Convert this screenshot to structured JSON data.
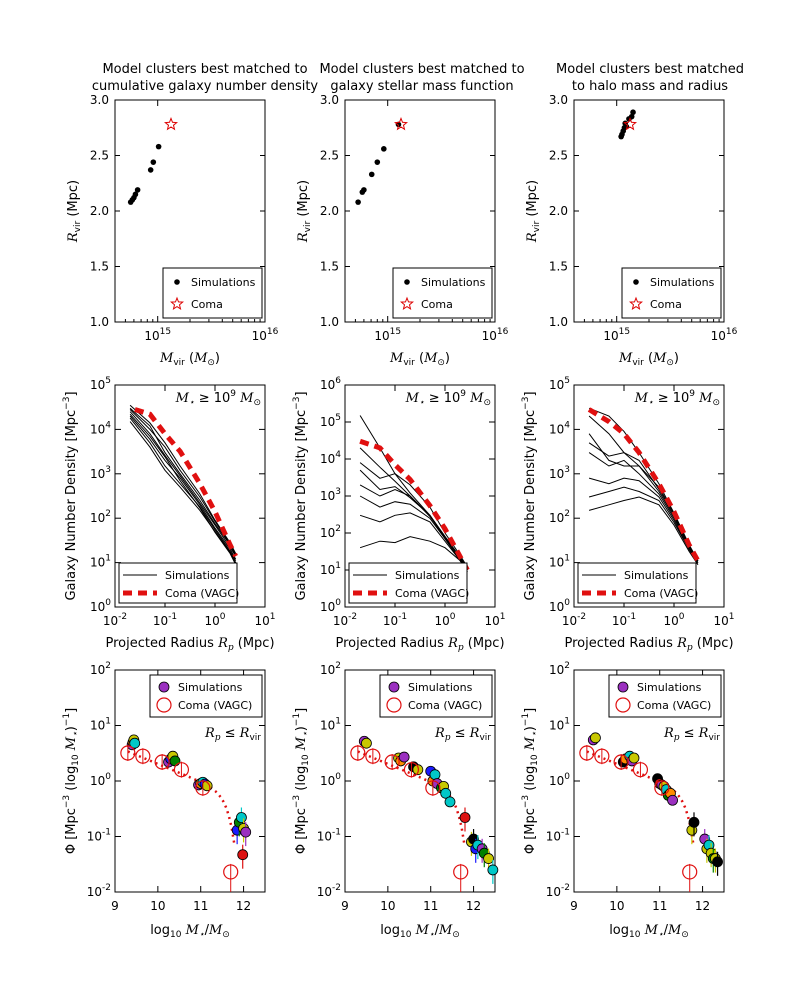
{
  "columns": [
    {
      "title_lines": [
        "Model clusters best matched to",
        "cumulative galaxy number density"
      ]
    },
    {
      "title_lines": [
        "Model clusters best matched to",
        "galaxy stellar mass function"
      ]
    },
    {
      "title_lines": [
        "Model clusters best matched",
        "to halo mass and radius"
      ]
    }
  ],
  "chart_data": [
    {
      "type": "scatter",
      "panel": "rvir-vs-mvir-col1",
      "xlabel": "M_vir (M_⊙)",
      "ylabel": "R_vir (Mpc)",
      "xscale": "log",
      "xlim": [
        400000000000000.0,
        1e+16
      ],
      "ylim": [
        1.0,
        3.0
      ],
      "xticks": [
        "10^15",
        "10^16"
      ],
      "yticks": [
        "1.0",
        "1.5",
        "2.0",
        "2.5",
        "3.0"
      ],
      "legend": [
        "Simulations",
        "Coma"
      ],
      "legend_loc": "lower right",
      "series": [
        {
          "name": "Simulations",
          "x": [
            560000000000000.0,
            580000000000000.0,
            600000000000000.0,
            620000000000000.0,
            650000000000000.0,
            860000000000000.0,
            910000000000000.0,
            1020000000000000.0
          ],
          "y": [
            2.08,
            2.1,
            2.12,
            2.15,
            2.19,
            2.37,
            2.44,
            2.58
          ]
        },
        {
          "name": "Coma",
          "x": [
            1330000000000000.0
          ],
          "y": [
            2.78
          ]
        }
      ]
    },
    {
      "type": "scatter",
      "panel": "rvir-vs-mvir-col2",
      "xlabel": "M_vir (M_⊙)",
      "ylabel": "R_vir (Mpc)",
      "xscale": "log",
      "xlim": [
        400000000000000.0,
        1e+16
      ],
      "ylim": [
        1.0,
        3.0
      ],
      "xticks": [
        "10^15",
        "10^16"
      ],
      "yticks": [
        "1.0",
        "1.5",
        "2.0",
        "2.5",
        "3.0"
      ],
      "legend": [
        "Simulations",
        "Coma"
      ],
      "legend_loc": "lower right",
      "series": [
        {
          "name": "Simulations",
          "x": [
            530000000000000.0,
            580000000000000.0,
            600000000000000.0,
            710000000000000.0,
            800000000000000.0,
            920000000000000.0,
            1260000000000000.0
          ],
          "y": [
            2.08,
            2.17,
            2.19,
            2.33,
            2.44,
            2.56,
            2.78
          ]
        },
        {
          "name": "Coma",
          "x": [
            1330000000000000.0
          ],
          "y": [
            2.78
          ]
        }
      ]
    },
    {
      "type": "scatter",
      "panel": "rvir-vs-mvir-col3",
      "xlabel": "M_vir (M_⊙)",
      "ylabel": "R_vir (Mpc)",
      "xscale": "log",
      "xlim": [
        400000000000000.0,
        1e+16
      ],
      "ylim": [
        1.0,
        3.0
      ],
      "xticks": [
        "10^15",
        "10^16"
      ],
      "yticks": [
        "1.0",
        "1.5",
        "2.0",
        "2.5",
        "3.0"
      ],
      "legend": [
        "Simulations",
        "Coma"
      ],
      "legend_loc": "lower right",
      "series": [
        {
          "name": "Simulations",
          "x": [
            1100000000000000.0,
            1120000000000000.0,
            1150000000000000.0,
            1180000000000000.0,
            1200000000000000.0,
            1230000000000000.0,
            1300000000000000.0,
            1380000000000000.0,
            1420000000000000.0
          ],
          "y": [
            2.67,
            2.69,
            2.72,
            2.75,
            2.79,
            2.76,
            2.83,
            2.85,
            2.89
          ]
        },
        {
          "name": "Coma",
          "x": [
            1330000000000000.0
          ],
          "y": [
            2.78
          ]
        }
      ]
    },
    {
      "type": "line",
      "panel": "density-profile-col1",
      "xlabel": "Projected Radius R_p (Mpc)",
      "ylabel": "Galaxy Number Density [Mpc^-3]",
      "xscale": "log",
      "yscale": "log",
      "xlim": [
        0.01,
        10
      ],
      "ylim": [
        1,
        100000
      ],
      "xticks": [
        "10^-2",
        "10^-1",
        "10^0",
        "10^1"
      ],
      "yticks": [
        "10^0",
        "10^1",
        "10^2",
        "10^3",
        "10^4",
        "10^5"
      ],
      "annotation": "M_⋆ ≥ 10^9 M_⊙",
      "legend": [
        "Simulations",
        "Coma (VAGC)"
      ],
      "legend_loc": "lower left",
      "x": [
        0.02,
        0.05,
        0.1,
        0.2,
        0.5,
        1.0,
        2.0,
        2.6
      ],
      "series": [
        {
          "values": [
            20000,
            6000,
            2000,
            800,
            200,
            60,
            20,
            12
          ]
        },
        {
          "values": [
            25000,
            8000,
            2600,
            900,
            220,
            70,
            22,
            14
          ]
        },
        {
          "values": [
            18000,
            5000,
            1500,
            600,
            180,
            55,
            18,
            11
          ]
        },
        {
          "values": [
            30000,
            12000,
            3000,
            1000,
            250,
            75,
            25,
            15
          ]
        },
        {
          "values": [
            15000,
            4000,
            1200,
            500,
            150,
            50,
            17,
            10
          ]
        },
        {
          "values": [
            28000,
            10000,
            4000,
            1200,
            300,
            85,
            26,
            14
          ]
        },
        {
          "values": [
            22000,
            7000,
            2400,
            700,
            170,
            48,
            16,
            9
          ]
        },
        {
          "values": [
            35000,
            14000,
            5000,
            1500,
            350,
            90,
            28,
            16
          ]
        }
      ],
      "coma": {
        "x": [
          0.025,
          0.05,
          0.1,
          0.2,
          0.5,
          1.0,
          2.0,
          2.6
        ],
        "values": [
          28000,
          22000,
          8000,
          3200,
          600,
          140,
          25,
          14
        ]
      }
    },
    {
      "type": "line",
      "panel": "density-profile-col2",
      "xlabel": "Projected Radius R_p (Mpc)",
      "ylabel": "Galaxy Number Density [Mpc^-3]",
      "xscale": "log",
      "yscale": "log",
      "xlim": [
        0.01,
        10
      ],
      "ylim": [
        1,
        1000000
      ],
      "xticks": [
        "10^-2",
        "10^-1",
        "10^0",
        "10^1"
      ],
      "yticks": [
        "10^0",
        "10^1",
        "10^2",
        "10^3",
        "10^4",
        "10^5",
        "10^6"
      ],
      "annotation": "M_⋆ ≥ 10^9 M_⊙",
      "legend": [
        "Simulations",
        "Coma (VAGC)"
      ],
      "legend_loc": "lower left",
      "x": [
        0.02,
        0.05,
        0.1,
        0.2,
        0.5,
        1.0,
        2.0,
        2.8
      ],
      "series": [
        {
          "values": [
            150000,
            20000,
            4000,
            1200,
            300,
            80,
            22,
            11
          ]
        },
        {
          "values": [
            20000,
            6000,
            2500,
            1000,
            280,
            75,
            20,
            10
          ]
        },
        {
          "values": [
            5000,
            1500,
            1800,
            900,
            300,
            80,
            22,
            11
          ]
        },
        {
          "values": [
            1000,
            500,
            700,
            600,
            250,
            70,
            20,
            10
          ]
        },
        {
          "values": [
            40,
            60,
            55,
            80,
            60,
            40,
            18,
            9
          ]
        },
        {
          "values": [
            300,
            200,
            300,
            350,
            200,
            60,
            18,
            10
          ]
        },
        {
          "values": [
            8000,
            3000,
            4000,
            2000,
            500,
            100,
            25,
            12
          ]
        },
        {
          "values": [
            2000,
            1000,
            1500,
            1000,
            300,
            70,
            18,
            9
          ]
        }
      ],
      "coma": {
        "x": [
          0.02,
          0.05,
          0.1,
          0.2,
          0.5,
          1.0,
          2.0,
          2.8
        ],
        "values": [
          30000,
          20000,
          7000,
          2800,
          550,
          130,
          23,
          10
        ]
      }
    },
    {
      "type": "line",
      "panel": "density-profile-col3",
      "xlabel": "Projected Radius R_p (Mpc)",
      "ylabel": "Galaxy Number Density [Mpc^-3]",
      "xscale": "log",
      "yscale": "log",
      "xlim": [
        0.01,
        10
      ],
      "ylim": [
        1,
        100000
      ],
      "xticks": [
        "10^-2",
        "10^-1",
        "10^0",
        "10^1"
      ],
      "yticks": [
        "10^0",
        "10^1",
        "10^2",
        "10^3",
        "10^4",
        "10^5"
      ],
      "annotation": "M_⋆ ≥ 10^9 M_⊙",
      "legend": [
        "Simulations",
        "Coma (VAGC)"
      ],
      "legend_loc": "lower left",
      "x": [
        0.02,
        0.05,
        0.1,
        0.2,
        0.5,
        1.0,
        2.0,
        3.0
      ],
      "series": [
        {
          "values": [
            8000,
            2000,
            1500,
            1500,
            500,
            130,
            25,
            11
          ]
        },
        {
          "values": [
            30000,
            20000,
            9000,
            3000,
            600,
            130,
            25,
            11
          ]
        },
        {
          "values": [
            20000,
            8000,
            3000,
            1500,
            400,
            110,
            23,
            10
          ]
        },
        {
          "values": [
            3000,
            1500,
            2000,
            1000,
            350,
            100,
            22,
            10
          ]
        },
        {
          "values": [
            800,
            600,
            800,
            700,
            300,
            90,
            20,
            10
          ]
        },
        {
          "values": [
            300,
            400,
            500,
            400,
            250,
            80,
            20,
            9
          ]
        },
        {
          "values": [
            150,
            200,
            250,
            300,
            200,
            70,
            18,
            9
          ]
        },
        {
          "values": [
            5000,
            2500,
            3000,
            2000,
            450,
            120,
            24,
            11
          ]
        }
      ],
      "coma": {
        "x": [
          0.02,
          0.05,
          0.1,
          0.2,
          0.5,
          1.0,
          2.0,
          3.0
        ],
        "values": [
          28000,
          15000,
          8000,
          3000,
          600,
          140,
          25,
          11
        ]
      }
    },
    {
      "type": "scatter",
      "panel": "smf-col1",
      "xlabel": "log10 M_⋆/M_⊙",
      "ylabel": "Φ [Mpc^-3 (log10 M_⋆)^-1]",
      "yscale": "log",
      "xlim": [
        9,
        12.5
      ],
      "ylim": [
        0.01,
        100
      ],
      "xticks": [
        "9",
        "10",
        "11",
        "12"
      ],
      "yticks": [
        "10^-2",
        "10^-1",
        "10^0",
        "10^1",
        "10^2"
      ],
      "annotation": "R_p ≤ R_vir",
      "legend": [
        "Simulations",
        "Coma (VAGC)"
      ],
      "legend_loc": "top",
      "simulations": {
        "x": [
          9.4,
          9.42,
          9.44,
          9.46,
          10.25,
          10.3,
          10.35,
          10.4,
          10.95,
          11.0,
          11.05,
          11.1,
          11.15,
          11.85,
          11.9,
          11.95,
          12.0,
          12.05,
          11.98
        ],
        "y": [
          4.5,
          5.0,
          5.5,
          4.8,
          2.2,
          2.5,
          2.8,
          2.3,
          0.85,
          0.9,
          0.95,
          0.88,
          0.82,
          0.13,
          0.18,
          0.22,
          0.14,
          0.12,
          0.047
        ],
        "colors": [
          "#9b30c0",
          "#ff8c00",
          "#c8c800",
          "#00c8c8",
          "#9b30c0",
          "#1a1aff",
          "#c8c800",
          "#008000",
          "#9b30c0",
          "#ff8c00",
          "#00c8c8",
          "#1a1aff",
          "#c8c800",
          "#1a1aff",
          "#008000",
          "#00c8c8",
          "#c8c800",
          "#9b30c0",
          "#dd1111"
        ]
      },
      "coma": {
        "x": [
          9.3,
          9.65,
          10.1,
          10.55,
          11.05,
          11.7
        ],
        "y": [
          3.2,
          2.8,
          2.2,
          1.6,
          0.75,
          0.023
        ]
      }
    },
    {
      "type": "scatter",
      "panel": "smf-col2",
      "xlabel": "log10 M_⋆/M_⊙",
      "ylabel": "Φ [Mpc^-3 (log10 M_⋆)^-1]",
      "yscale": "log",
      "xlim": [
        9,
        12.5
      ],
      "ylim": [
        0.01,
        100
      ],
      "xticks": [
        "9",
        "10",
        "11",
        "12"
      ],
      "yticks": [
        "10^-2",
        "10^-1",
        "10^0",
        "10^1",
        "10^2"
      ],
      "annotation": "R_p ≤ R_vir",
      "legend": [
        "Simulations",
        "Coma (VAGC)"
      ],
      "legend_loc": "top",
      "simulations": {
        "x": [
          9.45,
          9.5,
          10.25,
          10.3,
          10.38,
          10.6,
          10.7,
          11.0,
          11.05,
          11.1,
          11.15,
          11.25,
          11.3,
          11.35,
          11.45,
          11.8,
          11.95,
          12.0,
          12.05,
          12.1,
          12.2,
          12.25,
          12.35,
          12.45
        ],
        "y": [
          5.2,
          4.8,
          2.6,
          2.3,
          2.7,
          1.8,
          1.6,
          1.5,
          1.0,
          1.3,
          0.9,
          0.75,
          0.8,
          0.6,
          0.42,
          0.22,
          0.08,
          0.09,
          0.06,
          0.07,
          0.06,
          0.05,
          0.04,
          0.025
        ],
        "colors": [
          "#9b30c0",
          "#c8c800",
          "#c8c800",
          "#ff8c00",
          "#9b30c0",
          "#000000",
          "#c8c800",
          "#1a1aff",
          "#ff8c00",
          "#00c8c8",
          "#9b30c0",
          "#008000",
          "#c8c800",
          "#00c8c8",
          "#00c8c8",
          "#dd1111",
          "#c8c800",
          "#000000",
          "#1a1aff",
          "#00c8c8",
          "#9b30c0",
          "#008000",
          "#c8c800",
          "#00c8c8"
        ]
      },
      "coma": {
        "x": [
          9.3,
          9.65,
          10.1,
          10.55,
          11.05,
          11.7
        ],
        "y": [
          3.2,
          2.8,
          2.2,
          1.6,
          0.75,
          0.023
        ]
      }
    },
    {
      "type": "scatter",
      "panel": "smf-col3",
      "xlabel": "log10 M_⋆/M_⊙",
      "ylabel": "Φ [Mpc^-3 (log10 M_⋆)^-1]",
      "yscale": "log",
      "xlim": [
        9,
        12.5
      ],
      "ylim": [
        0.01,
        100
      ],
      "xticks": [
        "9",
        "10",
        "11",
        "12"
      ],
      "yticks": [
        "10^-2",
        "10^-1",
        "10^0",
        "10^1",
        "10^2"
      ],
      "annotation": "R_p ≤ R_vir",
      "legend": [
        "Simulations",
        "Coma (VAGC)"
      ],
      "legend_loc": "top",
      "simulations": {
        "x": [
          9.45,
          9.5,
          10.15,
          10.2,
          10.3,
          10.35,
          10.4,
          10.95,
          11.0,
          11.05,
          11.1,
          11.15,
          11.2,
          11.25,
          11.3,
          11.75,
          11.8,
          12.05,
          12.1,
          12.15,
          12.2,
          12.25,
          12.3,
          12.35
        ],
        "y": [
          5.5,
          6.0,
          2.2,
          2.5,
          2.8,
          2.3,
          2.6,
          1.1,
          0.9,
          0.85,
          0.8,
          0.7,
          0.55,
          0.6,
          0.45,
          0.13,
          0.18,
          0.09,
          0.06,
          0.07,
          0.05,
          0.04,
          0.04,
          0.035
        ],
        "colors": [
          "#9b30c0",
          "#c8c800",
          "#000000",
          "#ff8c00",
          "#00c8c8",
          "#9b30c0",
          "#c8c800",
          "#000000",
          "#dd1111",
          "#9b30c0",
          "#c8c800",
          "#00c8c8",
          "#008000",
          "#ff8c00",
          "#9b30c0",
          "#c8c800",
          "#000000",
          "#9b30c0",
          "#c8c800",
          "#00c8c8",
          "#c8c800",
          "#008000",
          "#c8c800",
          "#000000"
        ]
      },
      "coma": {
        "x": [
          9.3,
          9.65,
          10.1,
          10.55,
          11.05,
          11.7
        ],
        "y": [
          3.2,
          2.8,
          2.2,
          1.6,
          0.75,
          0.023
        ]
      }
    }
  ]
}
